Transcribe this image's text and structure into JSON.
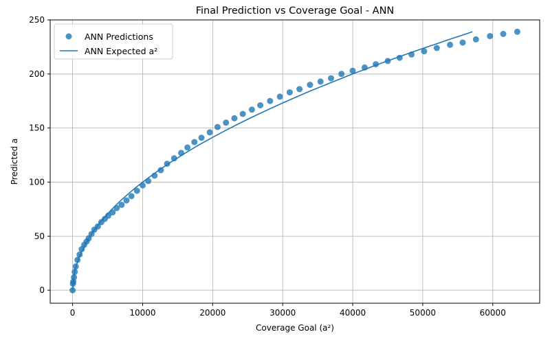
{
  "chart_data": {
    "type": "scatter",
    "title": "Final Prediction vs Coverage Goal - ANN",
    "xlabel": "Coverage Goal (a²)",
    "ylabel": "Predicted a",
    "xlim": [
      -3200,
      66700
    ],
    "ylim": [
      -12,
      250
    ],
    "xticks": [
      0,
      10000,
      20000,
      30000,
      40000,
      50000,
      60000
    ],
    "yticks": [
      0,
      50,
      100,
      150,
      200,
      250
    ],
    "grid": true,
    "legend_position": "top-left",
    "colors": {
      "points": "#1f77b4",
      "line": "#1f77b4",
      "grid": "#b0b0b0"
    },
    "series": [
      {
        "name": "ANN Predictions",
        "kind": "scatter",
        "x": [
          0,
          50,
          100,
          200,
          300,
          450,
          700,
          1000,
          1300,
          1650,
          2000,
          2300,
          2700,
          3100,
          3600,
          4100,
          4600,
          5100,
          5700,
          6300,
          7000,
          7700,
          8400,
          9200,
          10000,
          10800,
          11700,
          12600,
          13500,
          14500,
          15500,
          16400,
          17400,
          18400,
          19600,
          20700,
          21900,
          23100,
          24300,
          25600,
          26800,
          28200,
          29600,
          31000,
          32400,
          33900,
          35400,
          36900,
          38400,
          40000,
          41700,
          43300,
          45000,
          46700,
          48400,
          50200,
          52000,
          53900,
          55700,
          57600,
          59600,
          61500,
          63500
        ],
        "y": [
          0,
          6,
          8,
          12,
          17,
          22,
          28,
          33,
          38,
          42,
          45,
          48,
          52,
          56,
          59,
          63,
          66,
          69,
          72,
          76,
          79,
          83,
          87,
          92,
          97,
          101,
          106,
          111,
          117,
          122,
          127,
          132,
          137,
          141,
          146,
          151,
          155,
          159,
          163,
          167,
          171,
          175,
          179,
          183,
          186,
          190,
          193,
          196,
          200,
          203,
          206,
          209,
          212,
          215,
          218,
          221,
          224,
          227,
          229,
          232,
          235,
          237,
          239
        ]
      },
      {
        "name": "ANN Expected a²",
        "kind": "line",
        "x": [
          0,
          250,
          500,
          1000,
          2000,
          3000,
          4000,
          5000,
          6000,
          7000,
          8000,
          9000,
          10000,
          12000,
          14000,
          16000,
          18000,
          20000,
          22000,
          24000,
          26000,
          28000,
          30000,
          32000,
          34000,
          36000,
          38000,
          40000,
          42000,
          44000,
          46000,
          48000,
          50000,
          52000,
          54000,
          56000,
          57100
        ],
        "y": [
          0,
          15.8,
          22.4,
          31.6,
          44.7,
          54.8,
          63.2,
          70.7,
          77.5,
          83.7,
          89.4,
          94.9,
          100,
          109.5,
          118.3,
          126.5,
          134.2,
          141.4,
          148.3,
          154.9,
          161.2,
          167.3,
          173.2,
          178.9,
          184.4,
          189.7,
          194.9,
          200,
          204.9,
          209.8,
          214.5,
          219.1,
          223.6,
          228,
          232.4,
          236.6,
          239
        ]
      }
    ]
  }
}
